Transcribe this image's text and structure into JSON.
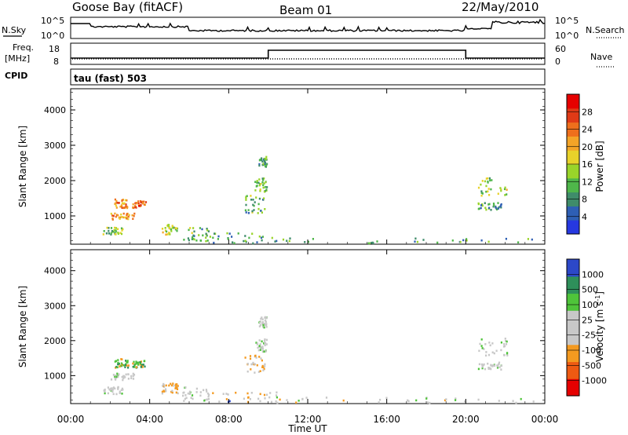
{
  "header": {
    "station": "Goose Bay (fitACF)",
    "beam": "Beam 01",
    "date": "22/May/2010"
  },
  "panels_text": {
    "nsky_label": "N.Sky",
    "nsky_ticks": [
      "10^5",
      "10^0"
    ],
    "nsearch_label": "N.Search",
    "nsearch_ticks": [
      "10^5",
      "10^0"
    ],
    "freq_label_1": "Freq.",
    "freq_label_2": "[MHz]",
    "freq_ticks": [
      "18",
      "8"
    ],
    "nave_label": "Nave",
    "nave_ticks": [
      "60",
      "0"
    ],
    "cpid_label": "CPID",
    "cpid_text": "tau (fast) 503"
  },
  "chart_data": [
    {
      "type": "heatmap",
      "name": "power",
      "ylabel": "Slant Range [km]",
      "yticks": [
        1000,
        2000,
        3000,
        4000
      ],
      "ylim": [
        200,
        4600
      ],
      "xlim": [
        0,
        24
      ],
      "colorbar_label": "Power [dB]",
      "colorbar_ticks": [
        "4",
        "8",
        "12",
        "16",
        "20",
        "24",
        "28"
      ],
      "colorbar_colors": [
        "#2638e0",
        "#2e5fb4",
        "#3f8c6a",
        "#4fb64a",
        "#99d42a",
        "#e8d22a",
        "#f4a427",
        "#ee6f1c",
        "#e03a16",
        "#e60000"
      ],
      "scatter_blobs": [
        {
          "t": [
            2.0,
            3.2
          ],
          "r": [
            900,
            1100
          ],
          "level": 0.65
        },
        {
          "t": [
            2.2,
            2.9
          ],
          "r": [
            1250,
            1500
          ],
          "level": 0.7
        },
        {
          "t": [
            3.1,
            3.8
          ],
          "r": [
            1250,
            1450
          ],
          "level": 0.8
        },
        {
          "t": [
            1.6,
            2.6
          ],
          "r": [
            500,
            700
          ],
          "level": 0.4
        },
        {
          "t": [
            4.6,
            5.4
          ],
          "r": [
            500,
            800
          ],
          "level": 0.45
        },
        {
          "t": [
            5.6,
            7.0
          ],
          "r": [
            300,
            700
          ],
          "level": 0.35
        },
        {
          "t": [
            7.0,
            10.5
          ],
          "r": [
            250,
            550
          ],
          "level": 0.3
        },
        {
          "t": [
            8.8,
            9.8
          ],
          "r": [
            1100,
            1600
          ],
          "level": 0.35
        },
        {
          "t": [
            9.3,
            9.9
          ],
          "r": [
            1700,
            2100
          ],
          "level": 0.4
        },
        {
          "t": [
            9.5,
            9.9
          ],
          "r": [
            2400,
            2700
          ],
          "level": 0.3
        },
        {
          "t": [
            20.6,
            22.1
          ],
          "r": [
            1600,
            2100
          ],
          "level": 0.45
        },
        {
          "t": [
            20.6,
            21.8
          ],
          "r": [
            1200,
            1400
          ],
          "level": 0.3
        },
        {
          "t": [
            10.5,
            23.5
          ],
          "r": [
            250,
            400
          ],
          "level": 0.3
        }
      ]
    },
    {
      "type": "heatmap",
      "name": "velocity",
      "ylabel": "Slant Range [km]",
      "yticks": [
        1000,
        2000,
        3000,
        4000
      ],
      "ylim": [
        200,
        4600
      ],
      "xlim": [
        0,
        24
      ],
      "xlabel": "Time UT",
      "xticks": [
        "00:00",
        "04:00",
        "08:00",
        "12:00",
        "16:00",
        "20:00",
        "00:00"
      ],
      "colorbar_label": "Velocity [m s^-1]",
      "colorbar_label_main": "Velocity [m s",
      "colorbar_label_exp": "-1",
      "colorbar_label_close": "]",
      "colorbar_ticks": [
        "-1000",
        "-500",
        "-100",
        "-25",
        "25",
        "100",
        "500",
        "1000"
      ],
      "colorbar_colors": [
        "#e60000",
        "#ee5a12",
        "#f49a20",
        "#c8c8c8",
        "#c8c8c8",
        "#4fc43a",
        "#2e8f5a",
        "#2c48c8"
      ]
    }
  ]
}
